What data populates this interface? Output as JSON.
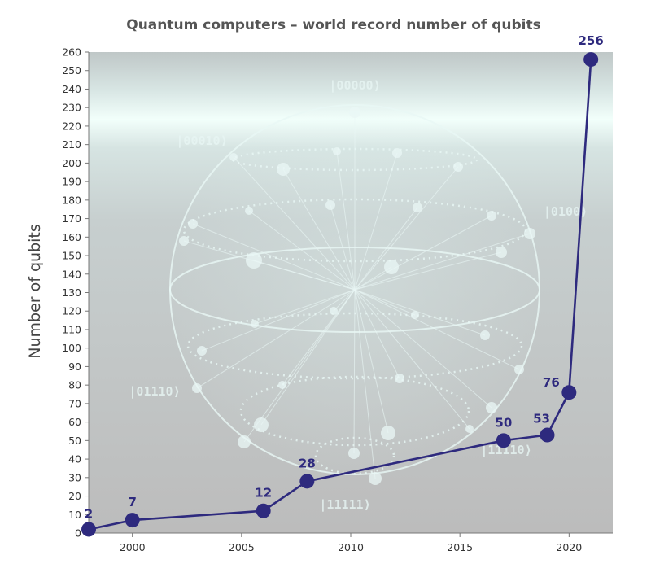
{
  "chart_data": {
    "type": "line",
    "title": "Quantum computers – world record number of qubits",
    "xlabel": "",
    "ylabel": "Number of qubits",
    "xlim": [
      1998,
      2022
    ],
    "ylim": [
      0,
      260
    ],
    "xticks": [
      2000,
      2005,
      2010,
      2015,
      2020
    ],
    "yticks": [
      0,
      10,
      20,
      30,
      40,
      50,
      60,
      70,
      80,
      90,
      100,
      110,
      120,
      130,
      140,
      150,
      160,
      170,
      180,
      190,
      200,
      210,
      220,
      230,
      240,
      250,
      260
    ],
    "grid": false,
    "series": [
      {
        "points": [
          {
            "x": 1998,
            "y": 2,
            "label": "2"
          },
          {
            "x": 2000,
            "y": 7,
            "label": "7"
          },
          {
            "x": 2006,
            "y": 12,
            "label": "12"
          },
          {
            "x": 2008,
            "y": 28,
            "label": "28"
          },
          {
            "x": 2017,
            "y": 50,
            "label": "50"
          },
          {
            "x": 2019,
            "y": 53,
            "label": "53"
          },
          {
            "x": 2020,
            "y": 76,
            "label": "76"
          },
          {
            "x": 2021,
            "y": 256,
            "label": "256"
          }
        ]
      }
    ],
    "colors": {
      "line": "#2e2a7e",
      "marker": "#2e2a7e",
      "label": "#2e2a7e",
      "background_top": "#c4cbcb",
      "background_bottom": "#bbbbbb",
      "glow": "#f2fffb"
    },
    "background_image": {
      "description_icon": "qubit-state-sphere-icon",
      "kets": [
        "|00000⟩",
        "|00010⟩",
        "|0100⟩",
        "|01110⟩",
        "|11110⟩",
        "|11111⟩"
      ]
    }
  }
}
